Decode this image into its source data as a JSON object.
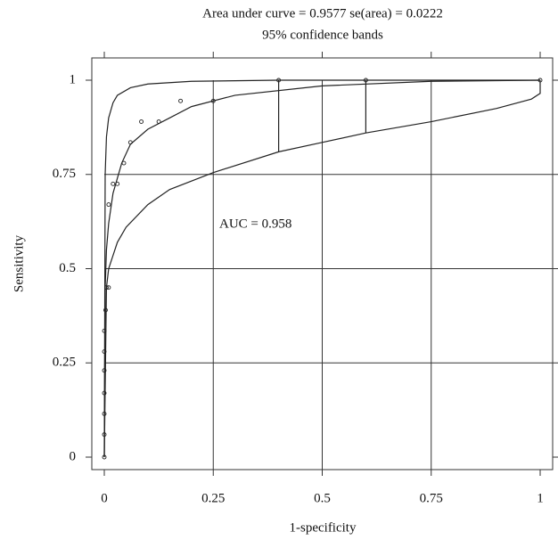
{
  "chart_data": {
    "type": "line",
    "title": "Area under curve = 0.9577 se(area) = 0.0222",
    "subtitle": "95% confidence bands",
    "annotation": "AUC = 0.958",
    "x_label": "1-specificity",
    "y_label": "Sensitivity",
    "xlim": [
      0,
      1
    ],
    "ylim": [
      0,
      1
    ],
    "xticks": [
      0,
      0.25,
      0.5,
      0.75,
      1
    ],
    "yticks": [
      0,
      0.25,
      0.5,
      0.75,
      1
    ],
    "grid": true,
    "series": [
      {
        "style": "points",
        "color": "#222222",
        "x": [
          0,
          0,
          0,
          0,
          0,
          0,
          0,
          0.003,
          0.005,
          0.01,
          0.01,
          0.02,
          0.03,
          0.045,
          0.06,
          0.085,
          0.125,
          0.175,
          0.25,
          0.4,
          0.6,
          1
        ],
        "values": [
          0,
          0.06,
          0.115,
          0.17,
          0.23,
          0.28,
          0.335,
          0.39,
          0.45,
          0.45,
          0.67,
          0.725,
          0.725,
          0.78,
          0.835,
          0.89,
          0.89,
          0.945,
          0.945,
          1,
          1,
          1
        ]
      },
      {
        "style": "line",
        "color": "#222222",
        "x": [
          0,
          0.002,
          0.005,
          0.01,
          0.02,
          0.04,
          0.06,
          0.1,
          0.15,
          0.2,
          0.3,
          0.5,
          0.75,
          1
        ],
        "values": [
          0,
          0.45,
          0.55,
          0.62,
          0.7,
          0.78,
          0.83,
          0.87,
          0.9,
          0.93,
          0.96,
          0.985,
          0.997,
          1
        ]
      },
      {
        "style": "line",
        "color": "#222222",
        "x": [
          0,
          0.002,
          0.005,
          0.01,
          0.02,
          0.03,
          0.06,
          0.1,
          0.2,
          0.4,
          1
        ],
        "values": [
          0,
          0.75,
          0.85,
          0.9,
          0.94,
          0.96,
          0.98,
          0.99,
          0.997,
          1,
          1
        ]
      },
      {
        "style": "line",
        "color": "#222222",
        "x": [
          0,
          0.005,
          0.01,
          0.03,
          0.05,
          0.1,
          0.15,
          0.25,
          0.4,
          0.5,
          0.6,
          0.75,
          0.9,
          0.98,
          1,
          1
        ],
        "values": [
          0,
          0.45,
          0.5,
          0.57,
          0.61,
          0.67,
          0.71,
          0.755,
          0.81,
          0.835,
          0.86,
          0.89,
          0.925,
          0.95,
          0.965,
          1
        ]
      },
      {
        "style": "line",
        "color": "#222222",
        "x": [
          0.4,
          0.4,
          null,
          0.6,
          0.6
        ],
        "values": [
          0.81,
          1,
          null,
          0.86,
          1
        ]
      }
    ]
  }
}
